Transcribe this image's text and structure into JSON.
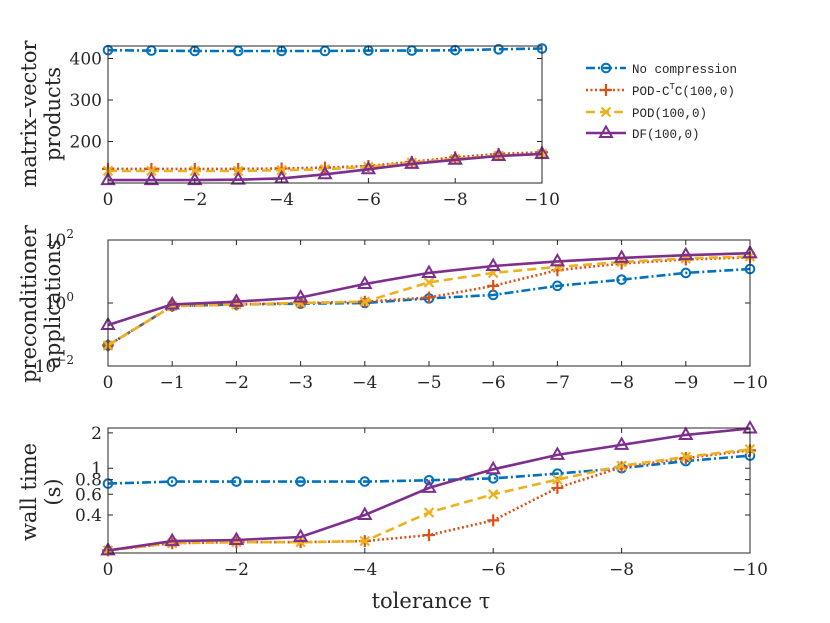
{
  "chart_data": [
    {
      "type": "line",
      "ylabel": [
        "matrix–vector",
        "products"
      ],
      "xlabel": "",
      "x": [
        0,
        -1,
        -2,
        -3,
        -4,
        -5,
        -6,
        -7,
        -8,
        -9,
        -10
      ],
      "xlim": [
        0,
        -10
      ],
      "xticks": [
        0,
        -2,
        -4,
        -6,
        -8,
        -10
      ],
      "xticklabels": [
        "0",
        "−2",
        "−4",
        "−6",
        "−8",
        "−10"
      ],
      "yscale": "linear",
      "ylim": [
        100,
        430
      ],
      "yticks": [
        200,
        300,
        400
      ],
      "yticklabels": [
        "200",
        "300",
        "400"
      ],
      "series": [
        {
          "name": "No compression",
          "values": [
            420,
            419,
            418,
            418,
            418,
            418,
            419,
            419,
            420,
            422,
            424
          ]
        },
        {
          "name": "POD-CᵀC(100,0)",
          "values": [
            134,
            134,
            134,
            134,
            135,
            137,
            141,
            151,
            162,
            170,
            174
          ]
        },
        {
          "name": "POD(100,0)",
          "values": [
            129,
            129,
            129,
            129,
            131,
            133,
            139,
            149,
            158,
            166,
            170
          ]
        },
        {
          "name": "DF(100,0)",
          "values": [
            107,
            107,
            107,
            108,
            111,
            121,
            133,
            146,
            156,
            165,
            170
          ]
        }
      ]
    },
    {
      "type": "line",
      "ylabel": [
        "preconditioner",
        "applications"
      ],
      "xlabel": "",
      "x": [
        0,
        -1,
        -2,
        -3,
        -4,
        -5,
        -6,
        -7,
        -8,
        -9,
        -10
      ],
      "xlim": [
        0,
        -10
      ],
      "xticks": [
        0,
        -1,
        -2,
        -3,
        -4,
        -5,
        -6,
        -7,
        -8,
        -9,
        -10
      ],
      "xticklabels": [
        "0",
        "−1",
        "−2",
        "−3",
        "−4",
        "−5",
        "−6",
        "−7",
        "−8",
        "−9",
        "−10"
      ],
      "yscale": "log",
      "ylim": [
        0.01,
        100
      ],
      "yticks": [
        0.01,
        1,
        100
      ],
      "yticklabels": [
        {
          "base": "10",
          "exp": "−2"
        },
        {
          "base": "10",
          "exp": "0"
        },
        {
          "base": "10",
          "exp": "2"
        }
      ],
      "series": [
        {
          "name": "No compression",
          "values": [
            0.045,
            0.8,
            0.9,
            0.95,
            1.0,
            1.4,
            1.8,
            3.5,
            5.5,
            9,
            12
          ]
        },
        {
          "name": "POD-CᵀC(100,0)",
          "values": [
            0.045,
            0.8,
            0.9,
            1.0,
            1.1,
            1.5,
            3.5,
            11,
            18,
            24,
            28
          ]
        },
        {
          "name": "POD(100,0)",
          "values": [
            0.045,
            0.8,
            0.9,
            1.0,
            1.1,
            4.5,
            9,
            14,
            20,
            26,
            30
          ]
        },
        {
          "name": "DF(100,0)",
          "values": [
            0.2,
            0.9,
            1.1,
            1.5,
            4,
            9,
            15,
            21,
            27,
            33,
            38
          ]
        }
      ]
    },
    {
      "type": "line",
      "ylabel": [
        "wall time",
        "(s)"
      ],
      "xlabel": "tolerance τ",
      "x": [
        0,
        -1,
        -2,
        -3,
        -4,
        -5,
        -6,
        -7,
        -8,
        -9,
        -10
      ],
      "xlim": [
        0,
        -10
      ],
      "xticks": [
        0,
        -2,
        -4,
        -6,
        -8,
        -10
      ],
      "xticklabels": [
        "0",
        "−2",
        "−4",
        "−6",
        "−8",
        "−10"
      ],
      "yscale": "log",
      "ylim": [
        0.19,
        2.2
      ],
      "yticks": [
        0.4,
        0.6,
        0.8,
        1,
        2
      ],
      "yticklabels": [
        "0.4",
        "0.6",
        "0.8",
        "1",
        "2"
      ],
      "series": [
        {
          "name": "No compression",
          "values": [
            0.74,
            0.77,
            0.77,
            0.77,
            0.77,
            0.79,
            0.82,
            0.9,
            1.0,
            1.15,
            1.28
          ]
        },
        {
          "name": "POD-CᵀC(100,0)",
          "values": [
            0.2,
            0.23,
            0.235,
            0.235,
            0.24,
            0.27,
            0.36,
            0.68,
            1.02,
            1.22,
            1.42
          ]
        },
        {
          "name": "POD(100,0)",
          "values": [
            0.2,
            0.23,
            0.235,
            0.235,
            0.24,
            0.42,
            0.6,
            0.8,
            1.05,
            1.25,
            1.45
          ]
        },
        {
          "name": "DF(100,0)",
          "values": [
            0.2,
            0.24,
            0.245,
            0.26,
            0.4,
            0.68,
            0.98,
            1.3,
            1.58,
            1.92,
            2.18
          ]
        }
      ]
    }
  ],
  "legend": {
    "position": "top-right",
    "entries": [
      {
        "label": "No compression",
        "color": "#0072BD",
        "marker": "circle",
        "dash": "dashdot"
      },
      {
        "label_pre": "POD-C",
        "label_sup": "T",
        "label_post": "C(100,0)",
        "color": "#D95319",
        "marker": "plus",
        "dash": "dotted"
      },
      {
        "label": "POD(100,0)",
        "color": "#EDB120",
        "marker": "x",
        "dash": "dashed"
      },
      {
        "label": "DF(100,0)",
        "color": "#7E2F8E",
        "marker": "triangle",
        "dash": "solid"
      }
    ]
  }
}
